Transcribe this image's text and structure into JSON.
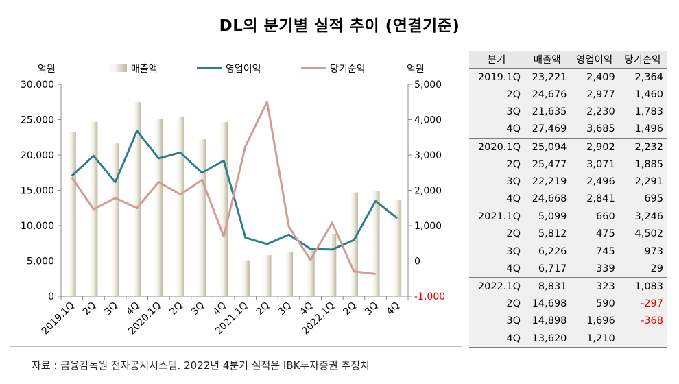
{
  "title": "DL의 분기별 실적 추이 (연결기준)",
  "source": "자료 : 금융감독원 전자공시시스템. 2022년 4분기 실적은 IBK투자증권 추정치",
  "chart_data": {
    "type": "bar",
    "left_axis_label": "억원",
    "right_axis_label": "억원",
    "categories": [
      "2019.1Q",
      "2Q",
      "3Q",
      "4Q",
      "2020.1Q",
      "2Q",
      "3Q",
      "4Q",
      "2021.1Q",
      "2Q",
      "3Q",
      "4Q",
      "2022.1Q",
      "2Q",
      "3Q",
      "4Q"
    ],
    "y_left_ticks": [
      "0",
      "5,000",
      "10,000",
      "15,000",
      "20,000",
      "25,000",
      "30,000"
    ],
    "y_right_ticks": [
      "-1,000",
      "0",
      "1,000",
      "2,000",
      "3,000",
      "4,000",
      "5,000"
    ],
    "ylim_left": [
      0,
      30000
    ],
    "ylim_right": [
      -1000,
      5000
    ],
    "grid": false,
    "legend_placement": "top",
    "series": [
      {
        "name": "매출액",
        "kind": "bar",
        "axis": "left",
        "color": "#c8c3ad",
        "values": [
          23221,
          24676,
          21635,
          27469,
          25094,
          25477,
          22219,
          24668,
          5099,
          5812,
          6226,
          6717,
          8831,
          14698,
          14898,
          13620
        ]
      },
      {
        "name": "영업이익",
        "kind": "line",
        "axis": "right",
        "color": "#2e7d8c",
        "values": [
          2409,
          2977,
          2230,
          3685,
          2902,
          3071,
          2496,
          2841,
          660,
          475,
          745,
          339,
          323,
          590,
          1696,
          1210
        ]
      },
      {
        "name": "당기순익",
        "kind": "line",
        "axis": "right",
        "color": "#d49a96",
        "values": [
          2364,
          1460,
          1783,
          1496,
          2232,
          1885,
          2291,
          695,
          3246,
          4502,
          973,
          29,
          1083,
          -297,
          -368,
          null
        ]
      }
    ]
  },
  "table": {
    "headers": [
      "분기",
      "매출액",
      "영업이익",
      "당기순익"
    ],
    "groups": [
      {
        "rows": [
          [
            "2019.1Q",
            "23,221",
            "2,409",
            "2,364"
          ],
          [
            "2Q",
            "24,676",
            "2,977",
            "1,460"
          ],
          [
            "3Q",
            "21,635",
            "2,230",
            "1,783"
          ],
          [
            "4Q",
            "27,469",
            "3,685",
            "1,496"
          ]
        ]
      },
      {
        "rows": [
          [
            "2020.1Q",
            "25,094",
            "2,902",
            "2,232"
          ],
          [
            "2Q",
            "25,477",
            "3,071",
            "1,885"
          ],
          [
            "3Q",
            "22,219",
            "2,496",
            "2,291"
          ],
          [
            "4Q",
            "24,668",
            "2,841",
            "695"
          ]
        ]
      },
      {
        "rows": [
          [
            "2021.1Q",
            "5,099",
            "660",
            "3,246"
          ],
          [
            "2Q",
            "5,812",
            "475",
            "4,502"
          ],
          [
            "3Q",
            "6,226",
            "745",
            "973"
          ],
          [
            "4Q",
            "6,717",
            "339",
            "29"
          ]
        ]
      },
      {
        "rows": [
          [
            "2022.1Q",
            "8,831",
            "323",
            "1,083"
          ],
          [
            "2Q",
            "14,698",
            "590",
            "-297"
          ],
          [
            "3Q",
            "14,898",
            "1,696",
            "-368"
          ],
          [
            "4Q",
            "13,620",
            "1,210",
            ""
          ]
        ]
      }
    ],
    "negative_color": "#e00000"
  }
}
